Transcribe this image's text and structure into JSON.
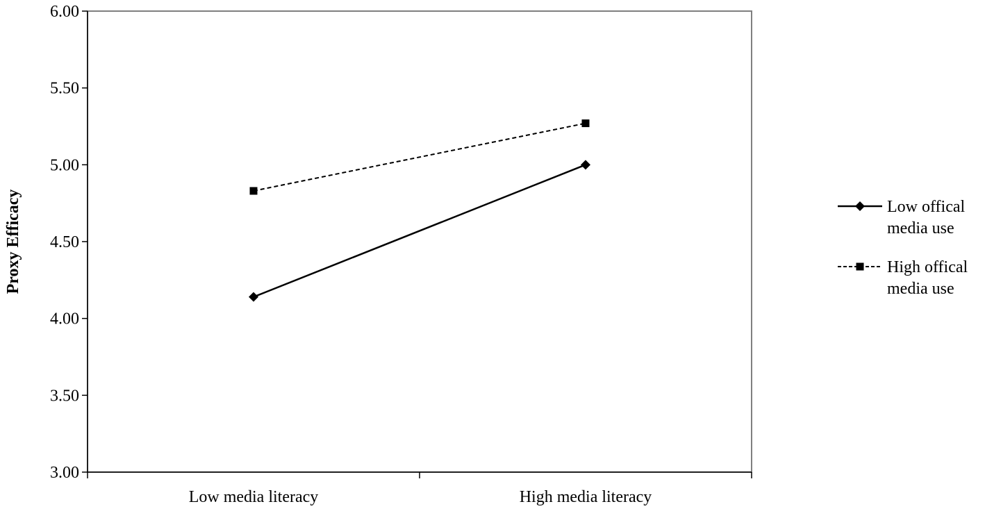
{
  "chart_data": {
    "type": "line",
    "categories": [
      "Low media literacy",
      "High media literacy"
    ],
    "series": [
      {
        "name_lines": [
          "Low offical",
          "media use"
        ],
        "values": [
          4.14,
          5.0
        ],
        "marker": "diamond",
        "dash": false,
        "color": "#000000"
      },
      {
        "name_lines": [
          "High offical",
          "media use"
        ],
        "values": [
          4.83,
          5.27
        ],
        "marker": "square",
        "dash": true,
        "color": "#000000"
      }
    ],
    "ylabel": "Proxy Efficacy",
    "xlabel": "",
    "ylim": [
      3.0,
      6.0
    ],
    "yticks": [
      3.0,
      3.5,
      4.0,
      4.5,
      5.0,
      5.5,
      6.0
    ],
    "ytick_labels": [
      "3.00",
      "3.50",
      "4.00",
      "4.50",
      "5.00",
      "5.50",
      "6.00"
    ],
    "grid": false,
    "legend_position": "right"
  }
}
